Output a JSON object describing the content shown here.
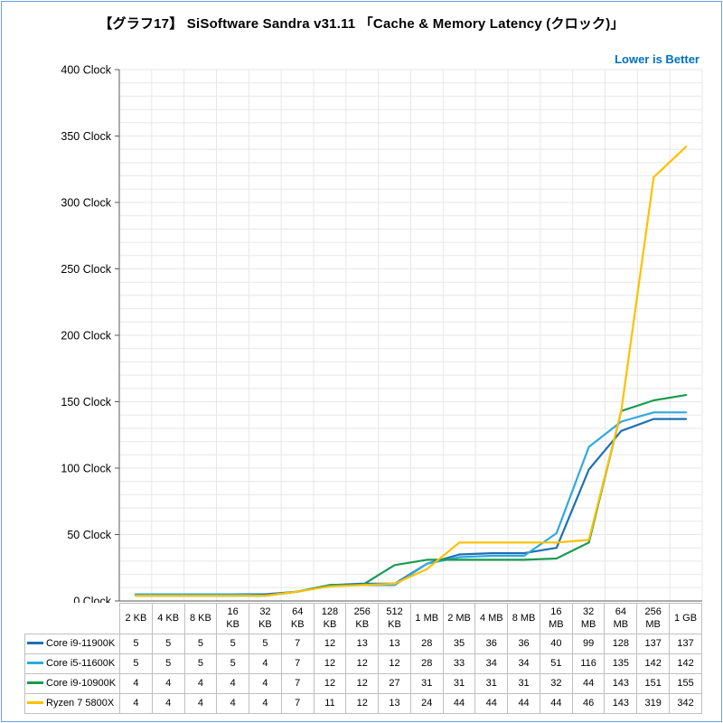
{
  "page": {
    "title": "【グラフ17】 SiSoftware Sandra v31.11 「Cache & Memory Latency (クロック)」",
    "note": "Lower is Better",
    "note_color": "#0070C0",
    "border_color": "#6D9EEB"
  },
  "chart_data": {
    "type": "line",
    "title": "【グラフ17】 SiSoftware Sandra v31.11 「Cache & Memory Latency (クロック)」",
    "annotation": "Lower is Better",
    "xlabel": "",
    "ylabel": "",
    "ylim": [
      0,
      400
    ],
    "ygrid_minor_step": 10,
    "grid": true,
    "legend_position": "table-left",
    "yticks": [
      {
        "value": 0,
        "label": "0 Clock"
      },
      {
        "value": 50,
        "label": "50 Clock"
      },
      {
        "value": 100,
        "label": "100 Clock"
      },
      {
        "value": 150,
        "label": "150 Clock"
      },
      {
        "value": 200,
        "label": "200 Clock"
      },
      {
        "value": 250,
        "label": "250 Clock"
      },
      {
        "value": 300,
        "label": "300 Clock"
      },
      {
        "value": 350,
        "label": "350 Clock"
      },
      {
        "value": 400,
        "label": "400 Clock"
      }
    ],
    "categories": [
      "2 KB",
      "4 KB",
      "8 KB",
      "16 KB",
      "32 KB",
      "64 KB",
      "128 KB",
      "256 KB",
      "512 KB",
      "1 MB",
      "2 MB",
      "4 MB",
      "8 MB",
      "16 MB",
      "32 MB",
      "64 MB",
      "256 MB",
      "1 GB"
    ],
    "series": [
      {
        "name": "Core i9-11900K",
        "color": "#1F6FB5",
        "values": [
          5,
          5,
          5,
          5,
          5,
          7,
          12,
          13,
          13,
          28,
          35,
          36,
          36,
          40,
          99,
          128,
          137,
          137
        ]
      },
      {
        "name": "Core i5-11600K",
        "color": "#2FA9DD",
        "values": [
          5,
          5,
          5,
          5,
          4,
          7,
          12,
          12,
          12,
          28,
          33,
          34,
          34,
          51,
          116,
          135,
          142,
          142
        ]
      },
      {
        "name": "Core i9-10900K",
        "color": "#199B51",
        "values": [
          4,
          4,
          4,
          4,
          4,
          7,
          12,
          12,
          27,
          31,
          31,
          31,
          31,
          32,
          44,
          143,
          151,
          155
        ]
      },
      {
        "name": "Ryzen 7 5800X",
        "color": "#FFC000",
        "values": [
          4,
          4,
          4,
          4,
          4,
          7,
          11,
          12,
          13,
          24,
          44,
          44,
          44,
          44,
          46,
          143,
          319,
          342
        ]
      }
    ]
  }
}
